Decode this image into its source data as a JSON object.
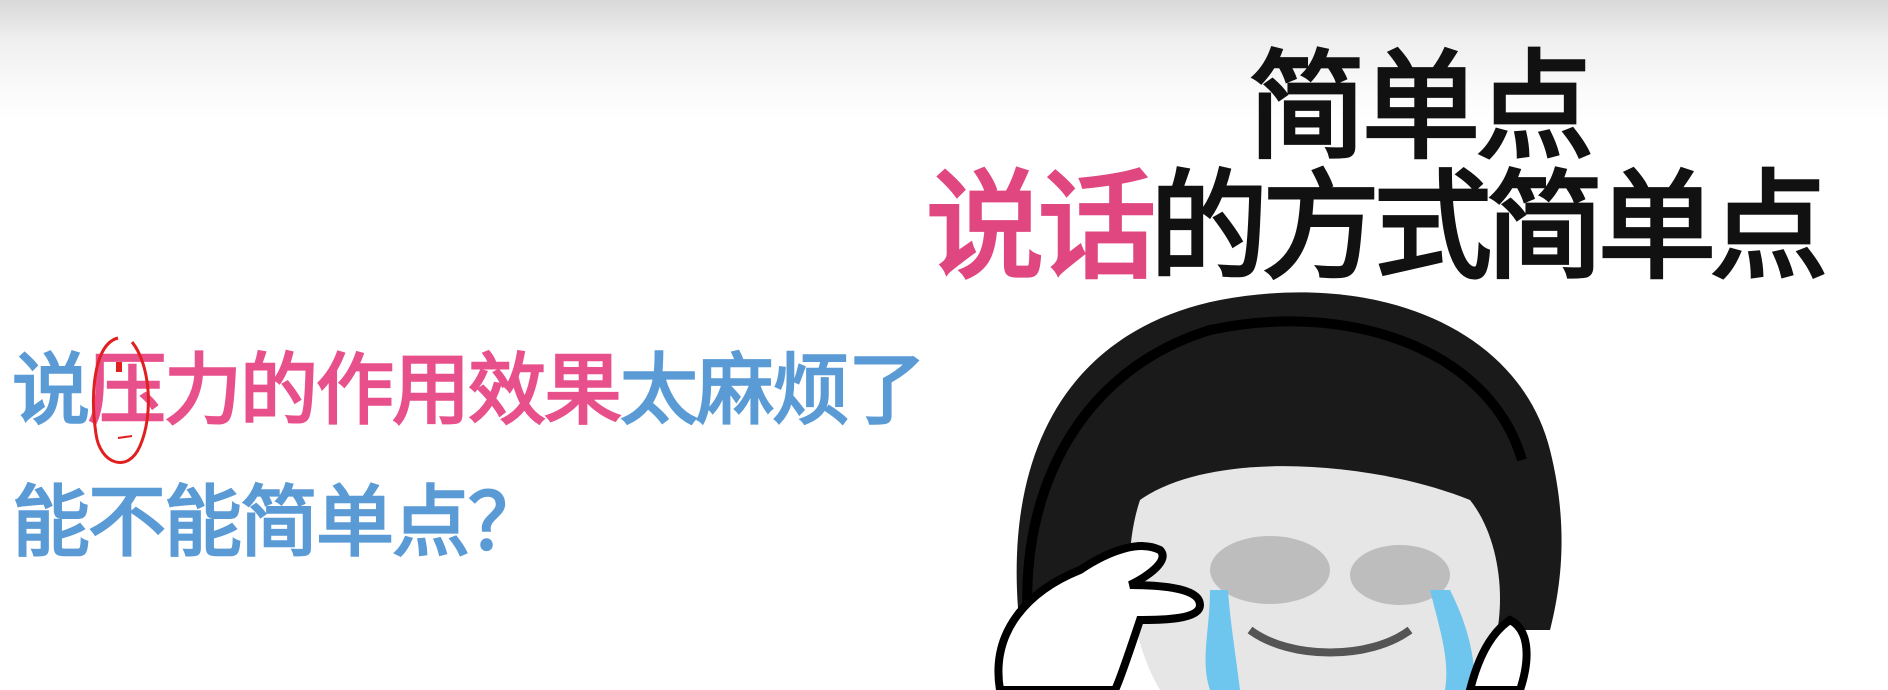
{
  "slide": {
    "line1": {
      "part_blue_1": "说",
      "part_pink": "压力的作用效果",
      "part_blue_2": "太麻烦了"
    },
    "line2": "能不能简单点？"
  },
  "meme": {
    "caption_line1": "简单点",
    "caption_line2_pink": "说话",
    "caption_line2_black": "的方式简单点"
  },
  "colors": {
    "blue": "#5b9bd5",
    "pink": "#e8508c",
    "annotation_red": "#e02020"
  }
}
